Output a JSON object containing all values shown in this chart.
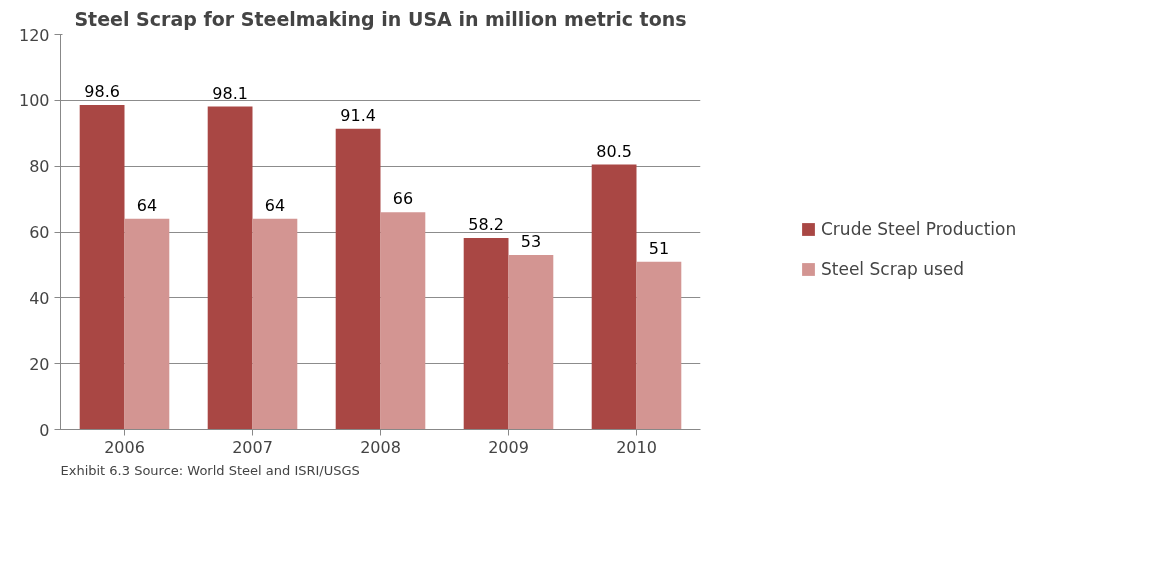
{
  "chart_data": {
    "type": "bar",
    "title": "Steel Scrap for Steelmaking in USA in million metric tons",
    "categories": [
      "2006",
      "2007",
      "2008",
      "2009",
      "2010"
    ],
    "series": [
      {
        "name": "Crude Steel Production",
        "color": "#a94744",
        "values": [
          98.6,
          98.1,
          91.4,
          58.2,
          80.5
        ]
      },
      {
        "name": "Steel Scrap used",
        "color": "#d39592",
        "values": [
          64,
          64,
          66,
          53,
          51
        ]
      }
    ],
    "ylim": [
      0,
      120
    ],
    "yticks": [
      0,
      20,
      40,
      60,
      80,
      100,
      120
    ],
    "grid": "y",
    "legend": "right",
    "data_labels": true,
    "annotations": [
      "Exhibit 6.3 Source: World Steel and ISRI/USGS"
    ]
  }
}
